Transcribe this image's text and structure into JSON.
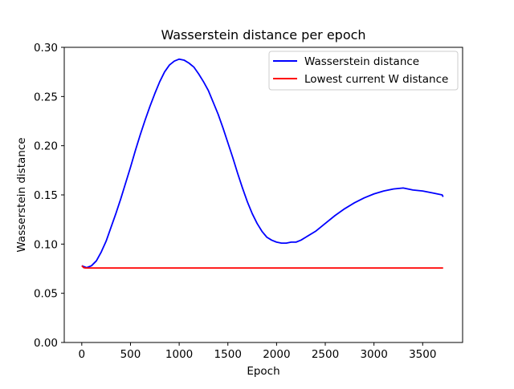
{
  "chart_data": {
    "type": "line",
    "title": "Wasserstein distance per epoch",
    "xlabel": "Epoch",
    "ylabel": "Wasserstein distance",
    "xlim": [
      -180,
      3910
    ],
    "ylim": [
      0.0,
      0.3
    ],
    "x_ticks": [
      0,
      500,
      1000,
      1500,
      2000,
      2500,
      3000,
      3500
    ],
    "x_tick_labels": [
      "0",
      "500",
      "1000",
      "1500",
      "2000",
      "2500",
      "3000",
      "3500"
    ],
    "y_ticks": [
      0.0,
      0.05,
      0.1,
      0.15,
      0.2,
      0.25,
      0.3
    ],
    "y_tick_labels": [
      "0.00",
      "0.05",
      "0.10",
      "0.15",
      "0.20",
      "0.25",
      "0.30"
    ],
    "grid": false,
    "legend_position": "top-right",
    "series": [
      {
        "name": "Wasserstein distance",
        "color": "#0000ff",
        "x": [
          0,
          50,
          100,
          150,
          200,
          250,
          300,
          350,
          400,
          450,
          500,
          550,
          600,
          650,
          700,
          750,
          800,
          850,
          900,
          950,
          1000,
          1050,
          1100,
          1150,
          1200,
          1250,
          1300,
          1350,
          1400,
          1450,
          1500,
          1550,
          1600,
          1650,
          1700,
          1750,
          1800,
          1850,
          1900,
          1950,
          2000,
          2050,
          2100,
          2150,
          2200,
          2250,
          2300,
          2400,
          2500,
          2600,
          2700,
          2800,
          2900,
          3000,
          3100,
          3200,
          3300,
          3350,
          3400,
          3500,
          3600,
          3650,
          3700,
          3710
        ],
        "y": [
          0.078,
          0.076,
          0.078,
          0.083,
          0.092,
          0.103,
          0.117,
          0.131,
          0.146,
          0.162,
          0.178,
          0.195,
          0.211,
          0.226,
          0.24,
          0.253,
          0.265,
          0.275,
          0.282,
          0.286,
          0.288,
          0.287,
          0.284,
          0.28,
          0.273,
          0.265,
          0.256,
          0.244,
          0.232,
          0.218,
          0.203,
          0.188,
          0.172,
          0.157,
          0.143,
          0.131,
          0.121,
          0.113,
          0.107,
          0.104,
          0.102,
          0.101,
          0.101,
          0.102,
          0.102,
          0.104,
          0.107,
          0.113,
          0.121,
          0.129,
          0.136,
          0.142,
          0.147,
          0.151,
          0.154,
          0.156,
          0.157,
          0.156,
          0.155,
          0.154,
          0.152,
          0.151,
          0.15,
          0.148
        ]
      },
      {
        "name": "Lowest current W distance",
        "color": "#ff0000",
        "x": [
          0,
          20,
          40,
          3710
        ],
        "y": [
          0.078,
          0.076,
          0.0757,
          0.0757
        ]
      }
    ]
  }
}
